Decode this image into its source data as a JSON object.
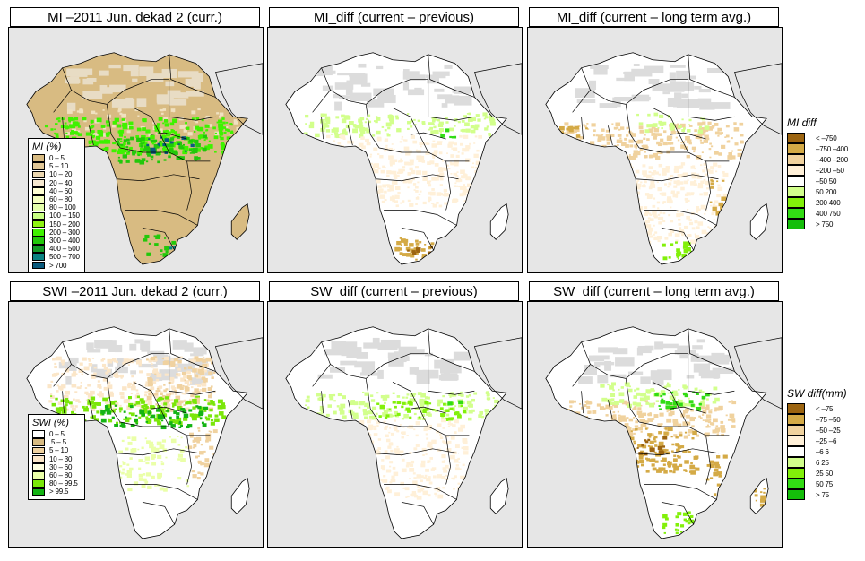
{
  "panels": [
    {
      "id": "mi-current",
      "title": "MI –2011 Jun. dekad 2 (curr.)",
      "variable": "MI",
      "mode": "current"
    },
    {
      "id": "mi-diff-prev",
      "title": "MI_diff (current – previous)",
      "variable": "MI_diff",
      "mode": "diff-previous"
    },
    {
      "id": "mi-diff-lta",
      "title": "MI_diff (current – long term avg.)",
      "variable": "MI_diff",
      "mode": "diff-lta"
    },
    {
      "id": "swi-current",
      "title": "SWI –2011 Jun. dekad 2 (curr.)",
      "variable": "SWI",
      "mode": "current"
    },
    {
      "id": "sw-diff-prev",
      "title": "SW_diff (current – previous)",
      "variable": "SW_diff",
      "mode": "diff-previous"
    },
    {
      "id": "sw-diff-lta",
      "title": "SW_diff (current – long term avg.)",
      "variable": "SW_diff",
      "mode": "diff-lta"
    }
  ],
  "legends": {
    "mi": {
      "title": "MI (%)",
      "items": [
        {
          "label": "0 – 5",
          "color": "#d8bb82"
        },
        {
          "label": "5 – 10",
          "color": "#e1c796"
        },
        {
          "label": "10 – 20",
          "color": "#ecd7b0"
        },
        {
          "label": "20 – 40",
          "color": "#f6e8cf"
        },
        {
          "label": "40 – 60",
          "color": "#ffffd2"
        },
        {
          "label": "60 – 80",
          "color": "#f4ffbe"
        },
        {
          "label": "80 – 100",
          "color": "#e4ffaa"
        },
        {
          "label": "100 – 150",
          "color": "#c8ff82"
        },
        {
          "label": "150 – 200",
          "color": "#8ef214"
        },
        {
          "label": "200 – 300",
          "color": "#3ff200"
        },
        {
          "label": "300 – 400",
          "color": "#22c80a"
        },
        {
          "label": "400 – 500",
          "color": "#149a28"
        },
        {
          "label": "500 – 700",
          "color": "#0a8282"
        },
        {
          "label": "> 700",
          "color": "#0a5a7d"
        }
      ]
    },
    "swi": {
      "title": "SWI (%)",
      "items": [
        {
          "label": "0 – 5",
          "color": "#ffffff"
        },
        {
          "label": ".5 – 5",
          "color": "#d8bb82"
        },
        {
          "label": "5 – 10",
          "color": "#f0d2a0"
        },
        {
          "label": "10 – 30",
          "color": "#fbe6c8"
        },
        {
          "label": "30 – 60",
          "color": "#ffffe0"
        },
        {
          "label": "60 – 80",
          "color": "#eaffa8"
        },
        {
          "label": "80 – 99.5",
          "color": "#7ae60a"
        },
        {
          "label": "> 99.5",
          "color": "#14b414"
        }
      ]
    },
    "mi_diff": {
      "title": "MI diff",
      "items": [
        {
          "label": "< –750",
          "color": "#9c6410"
        },
        {
          "label": "–750 –400",
          "color": "#d4aa46"
        },
        {
          "label": "–400 –200",
          "color": "#f0d29e"
        },
        {
          "label": "–200 –50",
          "color": "#fff0d8"
        },
        {
          "label": "–50 50",
          "color": "#ffffff"
        },
        {
          "label": "50 200",
          "color": "#d2ff8c"
        },
        {
          "label": "200 400",
          "color": "#82f00a"
        },
        {
          "label": "400 750",
          "color": "#32dc14"
        },
        {
          "label": "> 750",
          "color": "#14be0a"
        }
      ]
    },
    "sw_diff": {
      "title": "SW diff(mm)",
      "items": [
        {
          "label": "< –75",
          "color": "#9c6410"
        },
        {
          "label": "–75 –50",
          "color": "#d4aa46"
        },
        {
          "label": "–50 –25",
          "color": "#f0d29e"
        },
        {
          "label": "–25 –6",
          "color": "#fff0d8"
        },
        {
          "label": "–6 6",
          "color": "#ffffff"
        },
        {
          "label": "6 25",
          "color": "#d2ff8c"
        },
        {
          "label": "25 50",
          "color": "#82f00a"
        },
        {
          "label": "50 75",
          "color": "#32dc14"
        },
        {
          "label": "> 75",
          "color": "#14be0a"
        }
      ]
    }
  },
  "colors": {
    "sea": "#e6e6e6",
    "no_data": "#dcdcdc",
    "border": "#000000"
  }
}
